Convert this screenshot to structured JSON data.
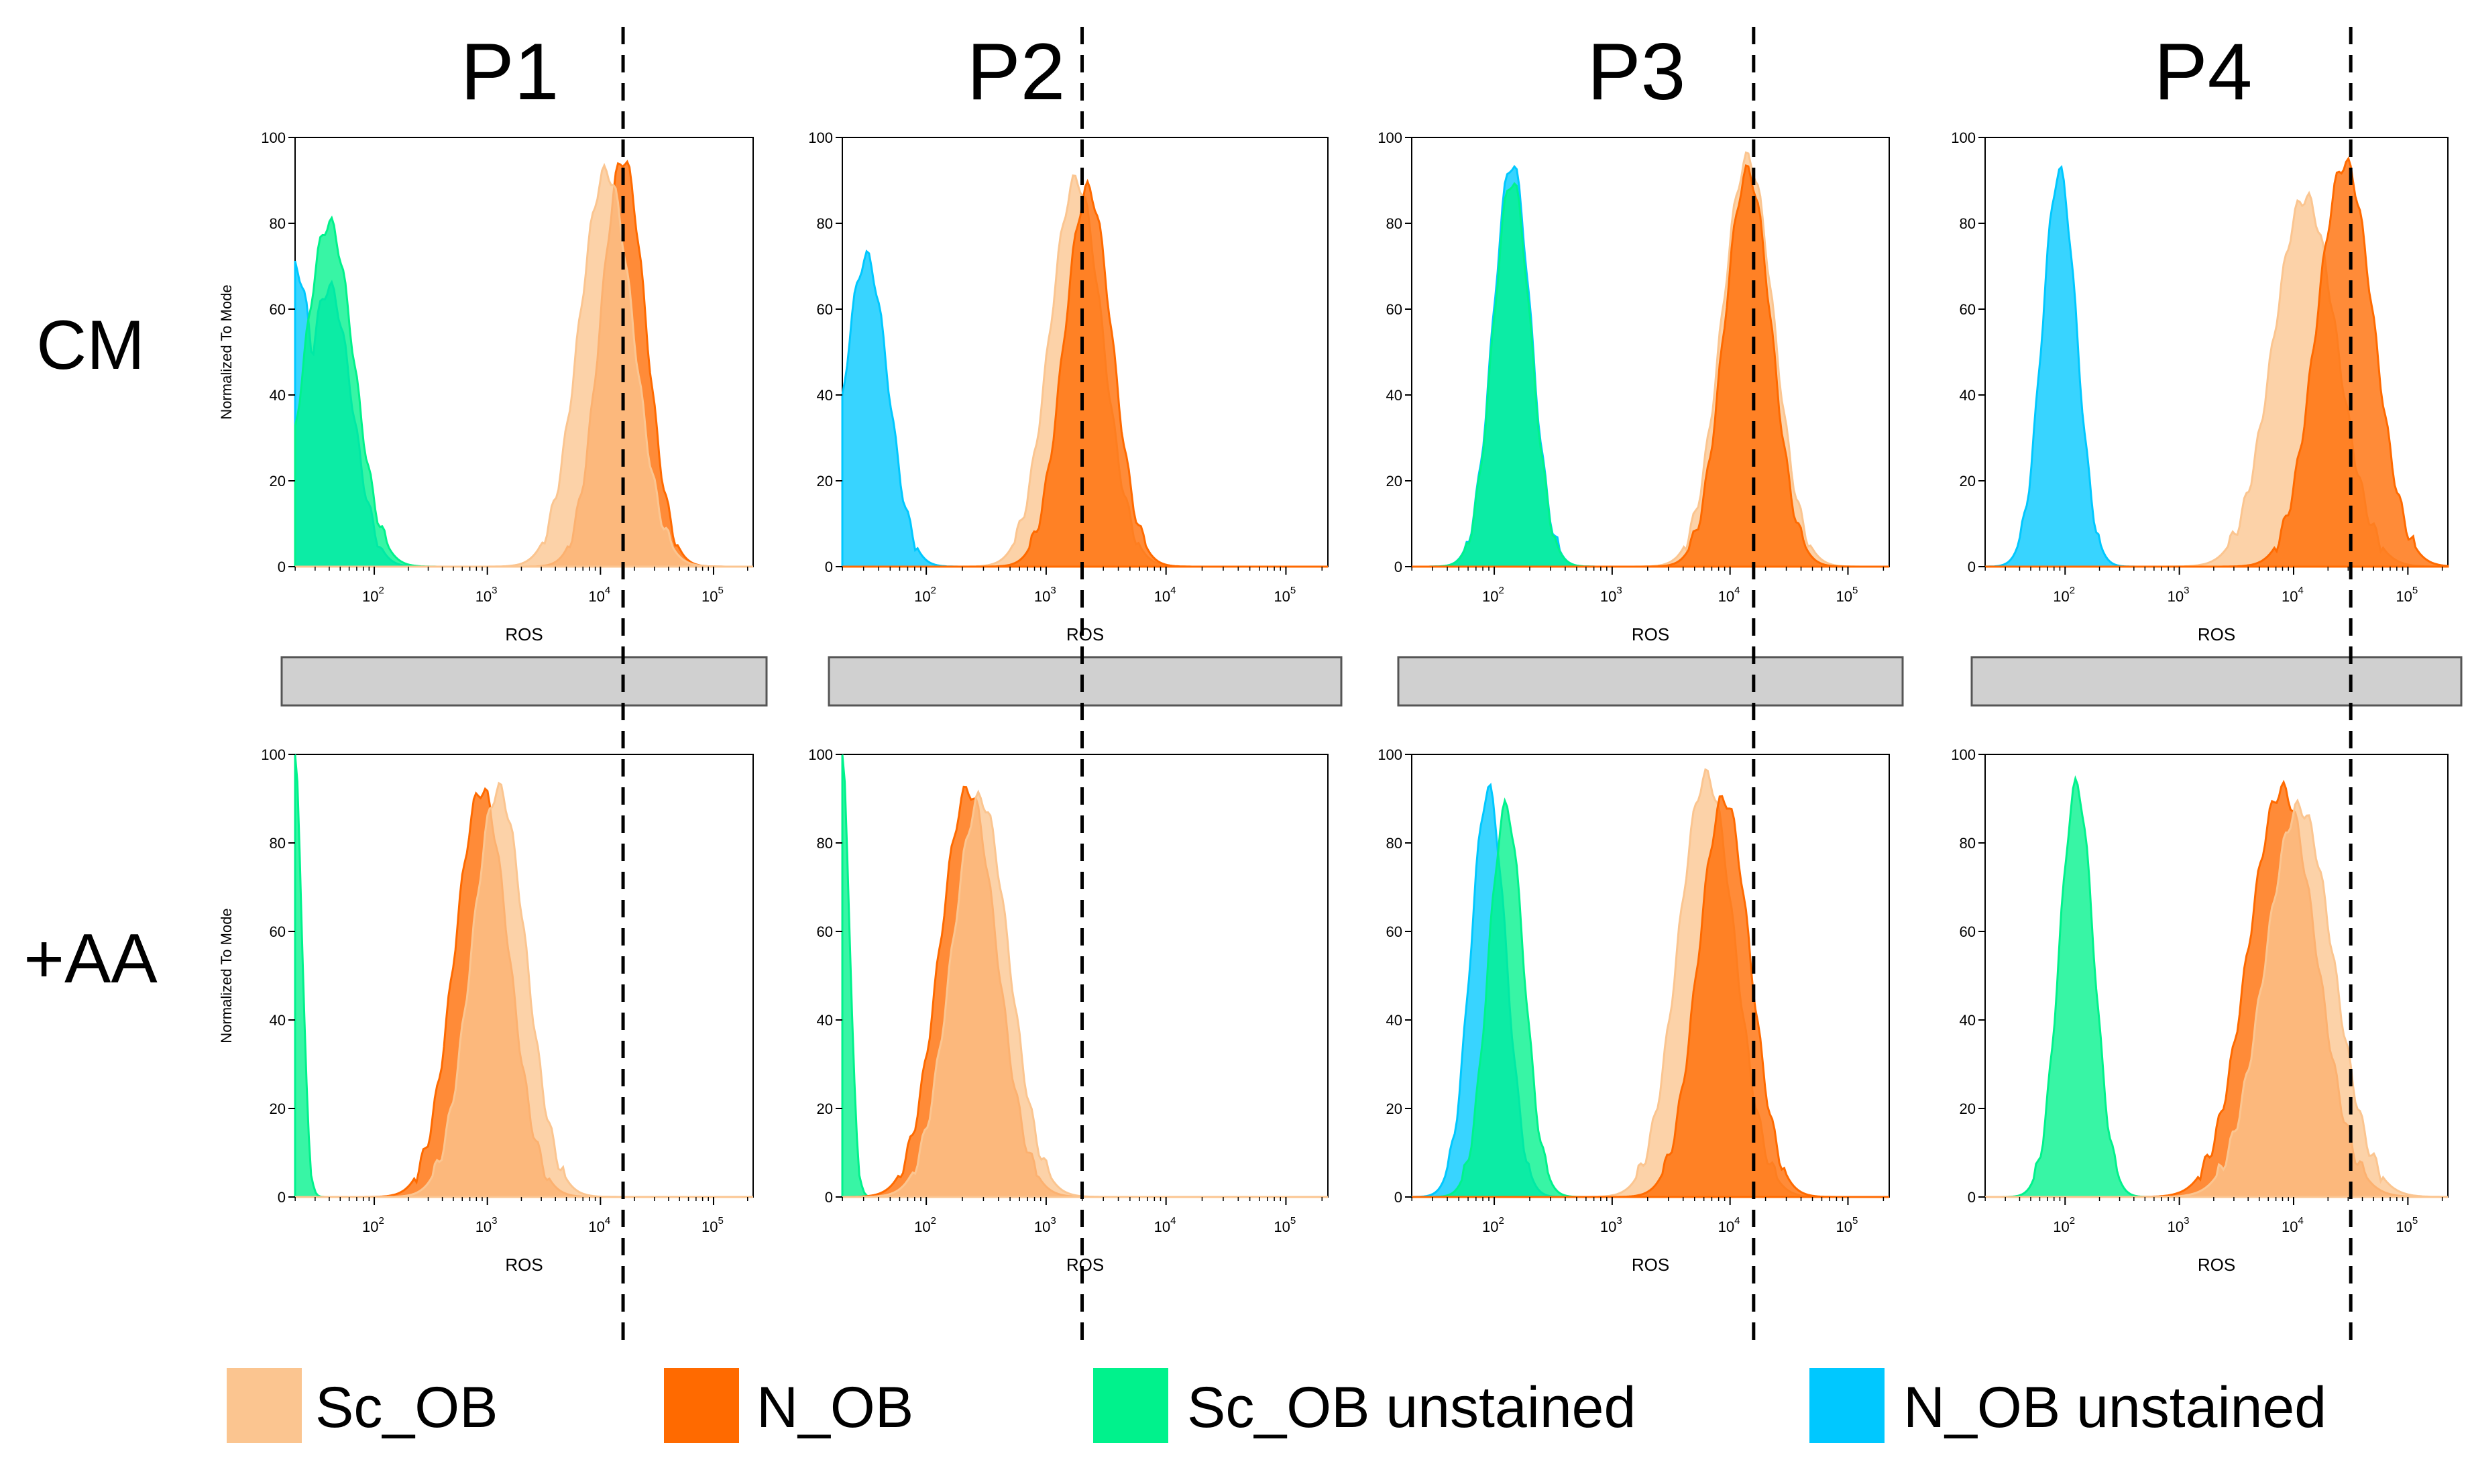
{
  "chart_data": {
    "type": "histogram-grid",
    "columns": [
      "P1",
      "P2",
      "P3",
      "P4"
    ],
    "rows": [
      "CM",
      "+AA"
    ],
    "xlabel": "ROS",
    "ylabel": "Normalized To Mode",
    "xscale": "log",
    "ylim": [
      0,
      100
    ],
    "yticks": [
      0,
      20,
      40,
      60,
      80,
      100
    ],
    "xtick_base": "10",
    "xtick_exponents": [
      "2",
      "3",
      "4",
      "5"
    ],
    "legend": [
      {
        "name": "Sc_OB",
        "color": "#fbc590"
      },
      {
        "name": "N_OB",
        "color": "#ff6a00"
      },
      {
        "name": "Sc_OB unstained",
        "color": "#00f28c"
      },
      {
        "name": "N_OB unstained",
        "color": "#00c8ff"
      }
    ],
    "reference_lines_log10": [
      4.2,
      3.3,
      4.2,
      4.5
    ],
    "panels": [
      {
        "col": "P1",
        "row": "CM",
        "series": [
          {
            "name": "N_OB unstained",
            "peaks": [
              [
                1.3,
                0.18,
                70
              ],
              [
                1.6,
                0.2,
                65
              ]
            ]
          },
          {
            "name": "Sc_OB unstained",
            "peaks": [
              [
                1.6,
                0.22,
                80
              ]
            ]
          },
          {
            "name": "N_OB",
            "peaks": [
              [
                4.2,
                0.2,
                95
              ]
            ]
          },
          {
            "name": "Sc_OB",
            "peaks": [
              [
                4.05,
                0.24,
                92
              ]
            ]
          }
        ]
      },
      {
        "col": "P2",
        "row": "CM",
        "series": [
          {
            "name": "N_OB unstained",
            "peaks": [
              [
                1.5,
                0.18,
                72
              ]
            ]
          },
          {
            "name": "Sc_OB",
            "peaks": [
              [
                3.25,
                0.22,
                90
              ]
            ]
          },
          {
            "name": "N_OB",
            "peaks": [
              [
                3.35,
                0.2,
                88
              ]
            ]
          }
        ]
      },
      {
        "col": "P3",
        "row": "CM",
        "series": [
          {
            "name": "N_OB unstained",
            "peaks": [
              [
                2.15,
                0.16,
                94
              ]
            ]
          },
          {
            "name": "Sc_OB unstained",
            "peaks": [
              [
                2.15,
                0.16,
                90
              ]
            ]
          },
          {
            "name": "Sc_OB",
            "peaks": [
              [
                4.15,
                0.22,
                95
              ]
            ]
          },
          {
            "name": "N_OB",
            "peaks": [
              [
                4.15,
                0.2,
                92
              ]
            ]
          }
        ]
      },
      {
        "col": "P4",
        "row": "CM",
        "series": [
          {
            "name": "N_OB unstained",
            "peaks": [
              [
                1.95,
                0.15,
                92
              ]
            ]
          },
          {
            "name": "Sc_OB",
            "peaks": [
              [
                4.1,
                0.28,
                86
              ]
            ]
          },
          {
            "name": "N_OB",
            "peaks": [
              [
                4.45,
                0.25,
                94
              ]
            ]
          }
        ]
      },
      {
        "col": "P1",
        "row": "+AA",
        "series": [
          {
            "name": "Sc_OB unstained",
            "peaks": [
              [
                1.3,
                0.06,
                100
              ]
            ]
          },
          {
            "name": "N_OB",
            "peaks": [
              [
                2.95,
                0.24,
                92
              ]
            ]
          },
          {
            "name": "Sc_OB",
            "peaks": [
              [
                3.1,
                0.24,
                92
              ]
            ]
          }
        ]
      },
      {
        "col": "P2",
        "row": "+AA",
        "series": [
          {
            "name": "Sc_OB unstained",
            "peaks": [
              [
                1.3,
                0.06,
                100
              ]
            ]
          },
          {
            "name": "N_OB",
            "peaks": [
              [
                2.35,
                0.24,
                92
              ]
            ]
          },
          {
            "name": "Sc_OB",
            "peaks": [
              [
                2.45,
                0.24,
                90
              ]
            ]
          }
        ]
      },
      {
        "col": "P3",
        "row": "+AA",
        "series": [
          {
            "name": "N_OB unstained",
            "peaks": [
              [
                1.95,
                0.15,
                92
              ]
            ]
          },
          {
            "name": "Sc_OB unstained",
            "peaks": [
              [
                2.1,
                0.15,
                88
              ]
            ]
          },
          {
            "name": "Sc_OB",
            "peaks": [
              [
                3.8,
                0.24,
                95
              ]
            ]
          },
          {
            "name": "N_OB",
            "peaks": [
              [
                3.95,
                0.22,
                90
              ]
            ]
          }
        ]
      },
      {
        "col": "P4",
        "row": "+AA",
        "series": [
          {
            "name": "Sc_OB unstained",
            "peaks": [
              [
                2.1,
                0.15,
                93
              ]
            ]
          },
          {
            "name": "N_OB",
            "peaks": [
              [
                3.9,
                0.3,
                92
              ]
            ]
          },
          {
            "name": "Sc_OB",
            "peaks": [
              [
                4.05,
                0.3,
                88
              ]
            ]
          }
        ]
      }
    ]
  }
}
